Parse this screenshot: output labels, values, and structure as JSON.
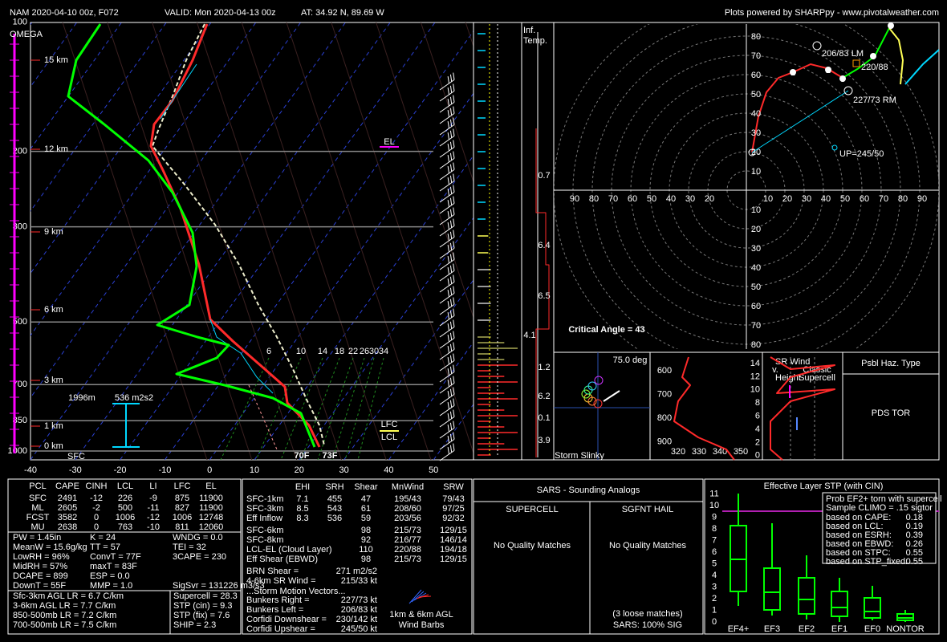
{
  "header": {
    "model": "NAM 2020-04-10 00z, F072",
    "valid": "VALID: Mon 2020-04-13 00z",
    "location": "AT: 34.92 N, 89.69 W",
    "credit": "Plots powered by SHARPpy - www.pivotalweather.com"
  },
  "skewt": {
    "omega": "OMEGA",
    "pressure_ticks": [
      100,
      200,
      300,
      500,
      700,
      850,
      1000
    ],
    "height_labels": [
      "15 km",
      "12 km",
      "9 km",
      "6 km",
      "3 km",
      "1 km",
      "0 km"
    ],
    "temp_ticks": [
      -40,
      -30,
      -20,
      -10,
      0,
      10,
      20,
      30,
      40,
      50
    ],
    "mixing_ratio_labels": [
      6,
      10,
      14,
      18,
      22,
      26,
      30,
      34
    ],
    "el": "EL",
    "lfc": "LFC",
    "lcl": "LCL",
    "eff_inflow_top": "1996m",
    "eff_srh": "536 m2s2",
    "sfc": "SFC",
    "sfc_dewpoint": "70F",
    "sfc_temp": "73F"
  },
  "inferred_temp": {
    "title": [
      "Inf.",
      "Temp."
    ],
    "values": [
      0.7,
      6.4,
      6.5,
      4.1,
      1.2,
      6.2,
      0.1,
      3.9
    ]
  },
  "hodograph": {
    "upper_rings": [
      80,
      70,
      60,
      50,
      40,
      30,
      20,
      10
    ],
    "left_rings": [
      90,
      80,
      70,
      60,
      50,
      40,
      30,
      20
    ],
    "right_rings": [
      10,
      20,
      30,
      40,
      50,
      60,
      70,
      80,
      90
    ],
    "lower_rings": [
      10,
      20,
      30,
      40,
      50,
      60,
      70,
      80
    ],
    "km_markers": [
      "1",
      "2",
      "3",
      "6",
      "9"
    ],
    "left_mover": "206/83 LM",
    "mean_wind": "220/88",
    "right_mover": "227/73 RM",
    "upshear": "UP=245/50",
    "critical_angle": "Critical Angle = 43"
  },
  "storm_slinky": {
    "angle": "75.0 deg",
    "title": "Storm Slinky"
  },
  "theta_e": {
    "pressure_ticks": [
      600,
      700,
      800,
      900
    ],
    "theta_ticks": [
      320,
      330,
      340,
      350
    ]
  },
  "sr_wind": {
    "title": [
      "SR Wind",
      "v.",
      "Height"
    ],
    "reference": [
      "Classic",
      "Supercell"
    ],
    "height_ticks": [
      14,
      12,
      10,
      8,
      6,
      4,
      2,
      0
    ]
  },
  "hazard": {
    "title": "Psbl Haz. Type",
    "type": "PDS TOR"
  },
  "thermo": {
    "headers": [
      "PCL",
      "CAPE",
      "CINH",
      "LCL",
      "LI",
      "LFC",
      "EL"
    ],
    "rows": [
      [
        "SFC",
        2491,
        -12,
        226,
        -9,
        875,
        11900
      ],
      [
        "ML",
        2605,
        -2,
        500,
        -11,
        827,
        11900
      ],
      [
        "FCST",
        3582,
        0,
        1006,
        -12,
        1006,
        12748
      ],
      [
        "MU",
        2638,
        0,
        763,
        -10,
        811,
        12060
      ]
    ],
    "indices_left": [
      "PW = 1.45in",
      "MeanW = 15.6g/kg",
      "LowRH = 96%",
      "MidRH = 57%",
      "DCAPE = 899",
      "DownT = 55F"
    ],
    "indices_mid": [
      "K = 24",
      "TT = 57",
      "ConvT = 77F",
      "maxT = 83F",
      "ESP = 0.0",
      "MMP = 1.0"
    ],
    "indices_right": [
      "WNDG = 0.0",
      "TEI = 32",
      "3CAPE = 230"
    ],
    "sigsvr": "SigSvr = 131226 m3/s3",
    "lapse_rates": [
      "Sfc-3km AGL LR = 6.7 C/km",
      "3-6km AGL LR = 7.7 C/km",
      "850-500mb LR = 7.2 C/km",
      "700-500mb LR = 7.5 C/km"
    ],
    "composites": [
      "Supercell = 28.3",
      "STP (cin) = 9.3",
      "STP (fix) = 7.6",
      "SHIP = 2.3"
    ]
  },
  "kinematic": {
    "headers": [
      "EHI",
      "SRH",
      "Shear",
      "MnWind",
      "SRW"
    ],
    "upper_rows": [
      [
        "SFC-1km",
        7.1,
        455,
        47,
        "195/43",
        "79/43"
      ],
      [
        "SFC-3km",
        8.5,
        543,
        61,
        "208/60",
        "97/25"
      ],
      [
        "Eff Inflow",
        8.3,
        536,
        59,
        "203/56",
        "92/32"
      ]
    ],
    "lower_rows": [
      [
        "SFC-6km",
        98,
        "215/73",
        "129/15"
      ],
      [
        "SFC-8km",
        92,
        "216/77",
        "146/14"
      ],
      [
        "LCL-EL (Cloud Layer)",
        110,
        "220/88",
        "194/18"
      ],
      [
        "Eff Shear (EBWD)",
        98,
        "215/73",
        "129/15"
      ]
    ],
    "params": [
      [
        "BRN Shear =",
        "271 m2/s2"
      ],
      [
        "4-6km SR Wind =",
        "215/33 kt"
      ]
    ],
    "motion_title": "...Storm Motion Vectors...",
    "motions": [
      [
        "Bunkers Right =",
        "227/73 kt"
      ],
      [
        "Bunkers Left =",
        "206/83 kt"
      ],
      [
        "Corfidi Downshear =",
        "230/142 kt"
      ],
      [
        "Corfidi Upshear =",
        "245/50 kt"
      ]
    ],
    "barb_caption": [
      "1km & 6km AGL",
      "Wind Barbs"
    ]
  },
  "sars": {
    "title": "SARS - Sounding Analogs",
    "supercell": "SUPERCELL",
    "hail": "SGFNT HAIL",
    "supercell_result": "No Quality Matches",
    "hail_result": "No Quality Matches",
    "loose": "(3 loose matches)",
    "sig": "SARS: 100% SIG"
  },
  "stp": {
    "title": "Effective Layer STP (with CIN)",
    "yticks": [
      0,
      1,
      2,
      3,
      4,
      5,
      6,
      7,
      8,
      9,
      10,
      11
    ],
    "categories": [
      "EF4+",
      "EF3",
      "EF2",
      "EF1",
      "EF0",
      "NONTOR"
    ],
    "legend_title": [
      "Prob EF2+ torn with supercell",
      "Sample CLIMO = .15 sigtor"
    ],
    "probs": [
      [
        "based on CAPE:",
        0.18
      ],
      [
        "based on LCL:",
        0.19
      ],
      [
        "based on ESRH:",
        0.39
      ],
      [
        "based on EBWD:",
        0.26
      ],
      [
        "based on STPC:",
        0.55
      ],
      [
        "based on STP_fixed:",
        0.55
      ]
    ]
  }
}
